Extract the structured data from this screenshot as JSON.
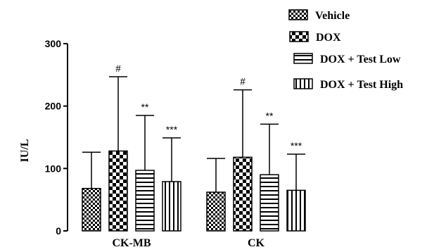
{
  "chart_data": {
    "type": "bar",
    "ylabel": "IU/L",
    "xlabel": "",
    "ylim": [
      0,
      300
    ],
    "yticks": [
      "0",
      "100",
      "200",
      "300"
    ],
    "categories": [
      "CK-MB",
      "CK"
    ],
    "series": [
      {
        "name": "Vehicle",
        "pattern": "checker-small",
        "values": [
          68,
          62
        ],
        "errors": [
          58,
          54
        ],
        "annotations": [
          "",
          ""
        ]
      },
      {
        "name": "DOX",
        "pattern": "checker-large",
        "values": [
          128,
          118
        ],
        "errors": [
          119,
          108
        ],
        "annotations": [
          "#",
          "#"
        ]
      },
      {
        "name": "DOX + Test Low",
        "pattern": "horizontal-lines",
        "values": [
          97,
          90
        ],
        "errors": [
          88,
          81
        ],
        "annotations": [
          "**",
          "**"
        ]
      },
      {
        "name": "DOX + Test High",
        "pattern": "vertical-lines",
        "values": [
          79,
          65
        ],
        "errors": [
          70,
          58
        ],
        "annotations": [
          "***",
          "***"
        ]
      }
    ],
    "legend_position": "top-right",
    "grid": false
  }
}
